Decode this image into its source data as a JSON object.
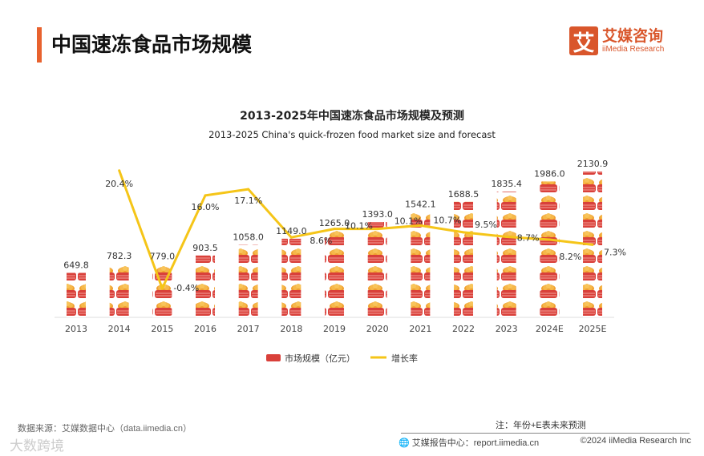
{
  "header": {
    "title": "中国速冻食品市场规模"
  },
  "logo": {
    "mark": "艾",
    "cn": "艾媒咨询",
    "en": "iiMedia Research"
  },
  "chart_data": {
    "type": "bar+line",
    "title": "2013-2025年中国速冻食品市场规模及预测",
    "subtitle": "2013-2025 China's quick-frozen food market size and forecast",
    "categories": [
      "2013",
      "2014",
      "2015",
      "2016",
      "2017",
      "2018",
      "2019",
      "2020",
      "2021",
      "2022",
      "2023",
      "2024E",
      "2025E"
    ],
    "series": [
      {
        "name": "市场规模（亿元）",
        "type": "bar",
        "values": [
          649.8,
          782.3,
          779.0,
          903.5,
          1058.0,
          1149.0,
          1265.0,
          1393.0,
          1542.1,
          1688.5,
          1835.4,
          1986.0,
          2130.9
        ],
        "labels": [
          "649.8",
          "782.3",
          "779.0",
          "903.5",
          "1058.0",
          "1149.0",
          "1265.0",
          "1393.0",
          "1542.1",
          "1688.5",
          "1835.4",
          "1986.0",
          "2130.9"
        ]
      },
      {
        "name": "增长率",
        "type": "line",
        "color": "#f5c518",
        "values": [
          null,
          20.4,
          -0.4,
          16.0,
          17.1,
          8.6,
          10.1,
          10.1,
          10.7,
          9.5,
          8.7,
          8.2,
          7.3
        ],
        "labels": [
          "",
          "20.4%",
          "-0.4%",
          "16.0%",
          "17.1%",
          "8.6%",
          "10.1%",
          "10.1%",
          "10.7%",
          "9.5%",
          "8.7%",
          "8.2%",
          "7.3%"
        ]
      }
    ],
    "bar_color": "#d9403a",
    "legend": "bottom"
  },
  "footer": {
    "source": "数据来源：艾媒数据中心（data.iimedia.cn）",
    "note": "注：年份+E表未来预测",
    "report": "艾媒报告中心：report.iimedia.cn",
    "copyright": "©2024  iiMedia Research  Inc",
    "watermark": "大数跨境"
  }
}
